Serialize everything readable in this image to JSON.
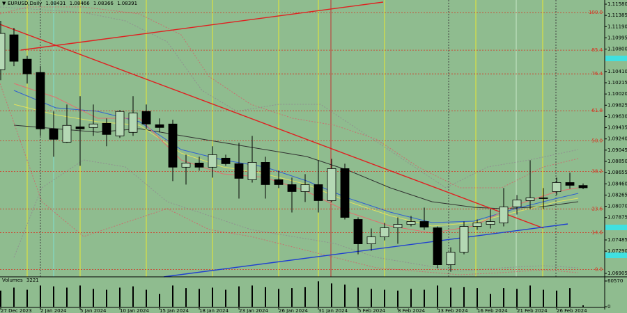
{
  "chart_data": {
    "type": "candlestick",
    "title": "EURUSD,Daily",
    "categories": [
      "27 Dec 2023",
      null,
      null,
      "2 Jan 2024",
      null,
      null,
      "5 Jan 2024",
      null,
      null,
      "10 Jan 2024",
      null,
      null,
      "15 Jan 2024",
      null,
      null,
      "18 Jan 2024",
      null,
      null,
      "23 Jan 2024",
      null,
      null,
      "26 Jan 2024",
      null,
      null,
      "31 Jan 2024",
      null,
      null,
      "5 Feb 2024",
      null,
      null,
      "8 Feb 2024",
      null,
      null,
      "13 Feb 2024",
      null,
      null,
      "16 Feb 2024",
      null,
      null,
      "21 Feb 2024",
      null,
      null,
      "26 Feb 2024",
      null,
      null
    ],
    "open": [
      1.10443,
      1.11048,
      1.10624,
      1.10394,
      1.09414,
      1.09184,
      1.0945,
      1.09438,
      1.09511,
      1.09293,
      1.09354,
      1.09717,
      1.09487,
      1.09499,
      1.08749,
      1.08821,
      1.08749,
      1.08906,
      1.08809,
      1.08531,
      1.08833,
      1.08531,
      1.08446,
      1.08325,
      1.08446,
      1.08168,
      1.08724,
      1.07841,
      1.07418,
      1.07539,
      1.07696,
      1.07756,
      1.07805,
      1.07696,
      1.07055,
      1.07272,
      1.0772,
      1.07756,
      1.07781,
      1.08059,
      1.08168,
      1.08216,
      1.08325,
      1.08482,
      1.08431
    ],
    "high": [
      1.1129,
      1.11169,
      1.10685,
      1.10503,
      1.09717,
      1.09838,
      1.09983,
      1.09838,
      1.09596,
      1.09741,
      1.09983,
      1.09838,
      1.09596,
      1.09571,
      1.08966,
      1.0893,
      1.09112,
      1.08966,
      1.09172,
      1.09293,
      1.0893,
      1.08688,
      1.08567,
      1.08628,
      1.0887,
      1.08894,
      1.08809,
      1.07877,
      1.07684,
      1.07781,
      1.07877,
      1.07902,
      1.08047,
      1.0772,
      1.07357,
      1.07805,
      1.07841,
      1.08023,
      1.08386,
      1.08265,
      1.0887,
      1.08386,
      1.08567,
      1.08652,
      1.08466
    ],
    "low": [
      1.10261,
      1.10503,
      1.10201,
      1.09293,
      1.0893,
      1.09172,
      1.08773,
      1.09293,
      1.09112,
      1.09257,
      1.09293,
      1.09414,
      1.09354,
      1.08507,
      1.08446,
      1.08688,
      1.08567,
      1.08773,
      1.08204,
      1.08482,
      1.08204,
      1.08386,
      1.07962,
      1.08144,
      1.07962,
      1.08144,
      1.07841,
      1.07236,
      1.07297,
      1.07478,
      1.07418,
      1.0772,
      1.0766,
      1.06994,
      1.06934,
      1.07236,
      1.0766,
      1.07684,
      1.0772,
      1.07926,
      1.08023,
      1.08023,
      1.08265,
      1.08374,
      1.08366
    ],
    "close": [
      1.11072,
      1.10588,
      1.1037,
      1.09414,
      1.09233,
      1.09475,
      1.09414,
      1.09499,
      1.09317,
      1.09717,
      1.09692,
      1.09499,
      1.09438,
      1.08749,
      1.08821,
      1.08749,
      1.08966,
      1.08809,
      1.08555,
      1.08833,
      1.08446,
      1.08446,
      1.08325,
      1.08446,
      1.08168,
      1.08724,
      1.07877,
      1.07418,
      1.07539,
      1.07696,
      1.07756,
      1.07805,
      1.07708,
      1.07055,
      1.07272,
      1.0772,
      1.07781,
      1.07805,
      1.08059,
      1.0818,
      1.08216,
      1.08204,
      1.08482,
      1.08434,
      1.08391
    ],
    "up_color": "#b4d8b4",
    "down_color": "#000000",
    "ylim": [
      1.06905,
      1.1158
    ],
    "yticks": [
      {
        "value": 1.1158,
        "label": "1.11580"
      },
      {
        "value": 1.11385,
        "label": "1.11385"
      },
      {
        "value": 1.1119,
        "label": "1.11190"
      },
      {
        "value": 1.10995,
        "label": "1.10995"
      },
      {
        "value": 1.108,
        "label": "1.10800"
      },
      {
        "value": 1.1041,
        "label": "1.10410"
      },
      {
        "value": 1.10215,
        "label": "1.10215"
      },
      {
        "value": 1.1002,
        "label": "1.10020"
      },
      {
        "value": 1.09825,
        "label": "1.09825"
      },
      {
        "value": 1.0963,
        "label": "1.09630"
      },
      {
        "value": 1.09435,
        "label": "1.09435"
      },
      {
        "value": 1.0924,
        "label": "1.09240"
      },
      {
        "value": 1.09045,
        "label": "1.09045"
      },
      {
        "value": 1.0885,
        "label": "1.08850"
      },
      {
        "value": 1.08655,
        "label": "1.08655"
      },
      {
        "value": 1.0846,
        "label": "1.08460"
      },
      {
        "value": 1.08265,
        "label": "1.08265"
      },
      {
        "value": 1.0807,
        "label": "1.08070"
      },
      {
        "value": 1.07875,
        "label": "1.07875"
      },
      {
        "value": 1.07485,
        "label": "1.07485"
      },
      {
        "value": 1.0729,
        "label": "1.07290"
      },
      {
        "value": 1.06905,
        "label": "1.06905"
      }
    ],
    "fib_levels": [
      {
        "label": "100.0",
        "price": 1.11435
      },
      {
        "label": "85.4",
        "price": 1.10781
      },
      {
        "label": "76.4",
        "price": 1.1037
      },
      {
        "label": "61.8",
        "price": 1.09729
      },
      {
        "label": "50.0",
        "price": 1.09208
      },
      {
        "label": "38.2",
        "price": 1.08676
      },
      {
        "label": "23.6",
        "price": 1.08023
      },
      {
        "label": "14.6",
        "price": 1.07611
      },
      {
        "label": "0.0",
        "price": 1.0697
      }
    ],
    "fib_color": "#d83020",
    "volume_title": "Volumes",
    "volumes": [
      38000,
      45000,
      40000,
      50000,
      48000,
      45000,
      50000,
      42000,
      40000,
      45000,
      48000,
      40000,
      30000,
      50000,
      44000,
      42000,
      45000,
      40000,
      48000,
      50000,
      46000,
      42000,
      44000,
      46000,
      60000,
      55000,
      52000,
      45000,
      42000,
      40000,
      38000,
      42000,
      40000,
      50000,
      45000,
      46000,
      44000,
      30000,
      44000,
      42000,
      50000,
      40000,
      38000,
      44000,
      3221
    ],
    "volume_lim": [
      0,
      60570
    ],
    "volume_ticks": [
      60570,
      0
    ],
    "grid": false
  }
}
